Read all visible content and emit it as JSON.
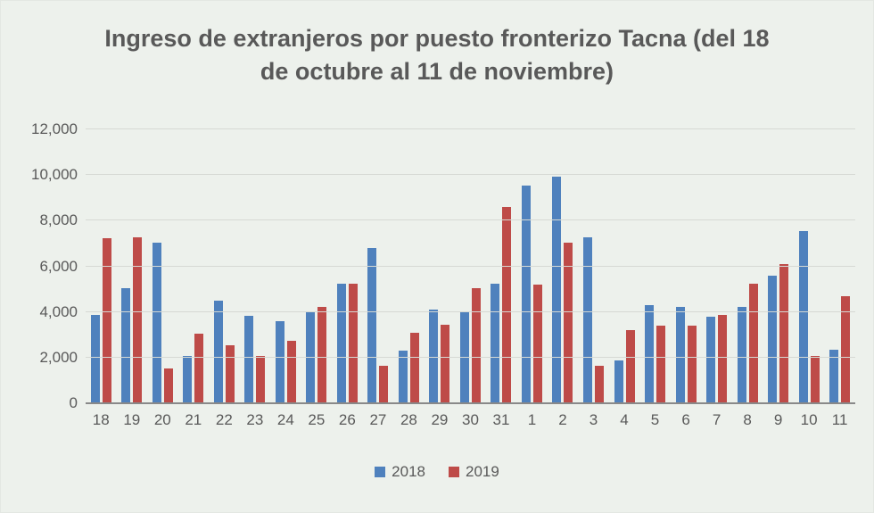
{
  "chart_data": {
    "type": "bar",
    "title": "Ingreso de extranjeros por puesto fronterizo Tacna (del 18 de octubre al 11 de noviembre)",
    "categories": [
      "18",
      "19",
      "20",
      "21",
      "22",
      "23",
      "24",
      "25",
      "26",
      "27",
      "28",
      "29",
      "30",
      "31",
      "1",
      "2",
      "3",
      "4",
      "5",
      "6",
      "7",
      "8",
      "9",
      "10",
      "11"
    ],
    "series": [
      {
        "name": "2018",
        "color": "#4f81bd",
        "values": [
          3850,
          5000,
          7000,
          2050,
          4450,
          3800,
          3550,
          3950,
          5200,
          6750,
          2250,
          4050,
          3950,
          5200,
          9500,
          9900,
          7250,
          1850,
          4250,
          4200,
          3750,
          4200,
          5550,
          7500,
          2300
        ]
      },
      {
        "name": "2019",
        "color": "#be4b48",
        "values": [
          7200,
          7250,
          1500,
          3000,
          2500,
          2050,
          2700,
          4200,
          5200,
          1600,
          3050,
          3400,
          5000,
          8550,
          5150,
          7000,
          1600,
          3150,
          3350,
          3350,
          3850,
          5200,
          6050,
          2050,
          4650
        ]
      }
    ],
    "xlabel": "",
    "ylabel": "",
    "ylim": [
      0,
      12000
    ],
    "yticks": [
      0,
      2000,
      4000,
      6000,
      8000,
      10000,
      12000
    ],
    "ytick_labels": [
      "0",
      "2,000",
      "4,000",
      "6,000",
      "8,000",
      "10,000",
      "12,000"
    ],
    "grid": "horizontal",
    "legend_position": "bottom"
  }
}
